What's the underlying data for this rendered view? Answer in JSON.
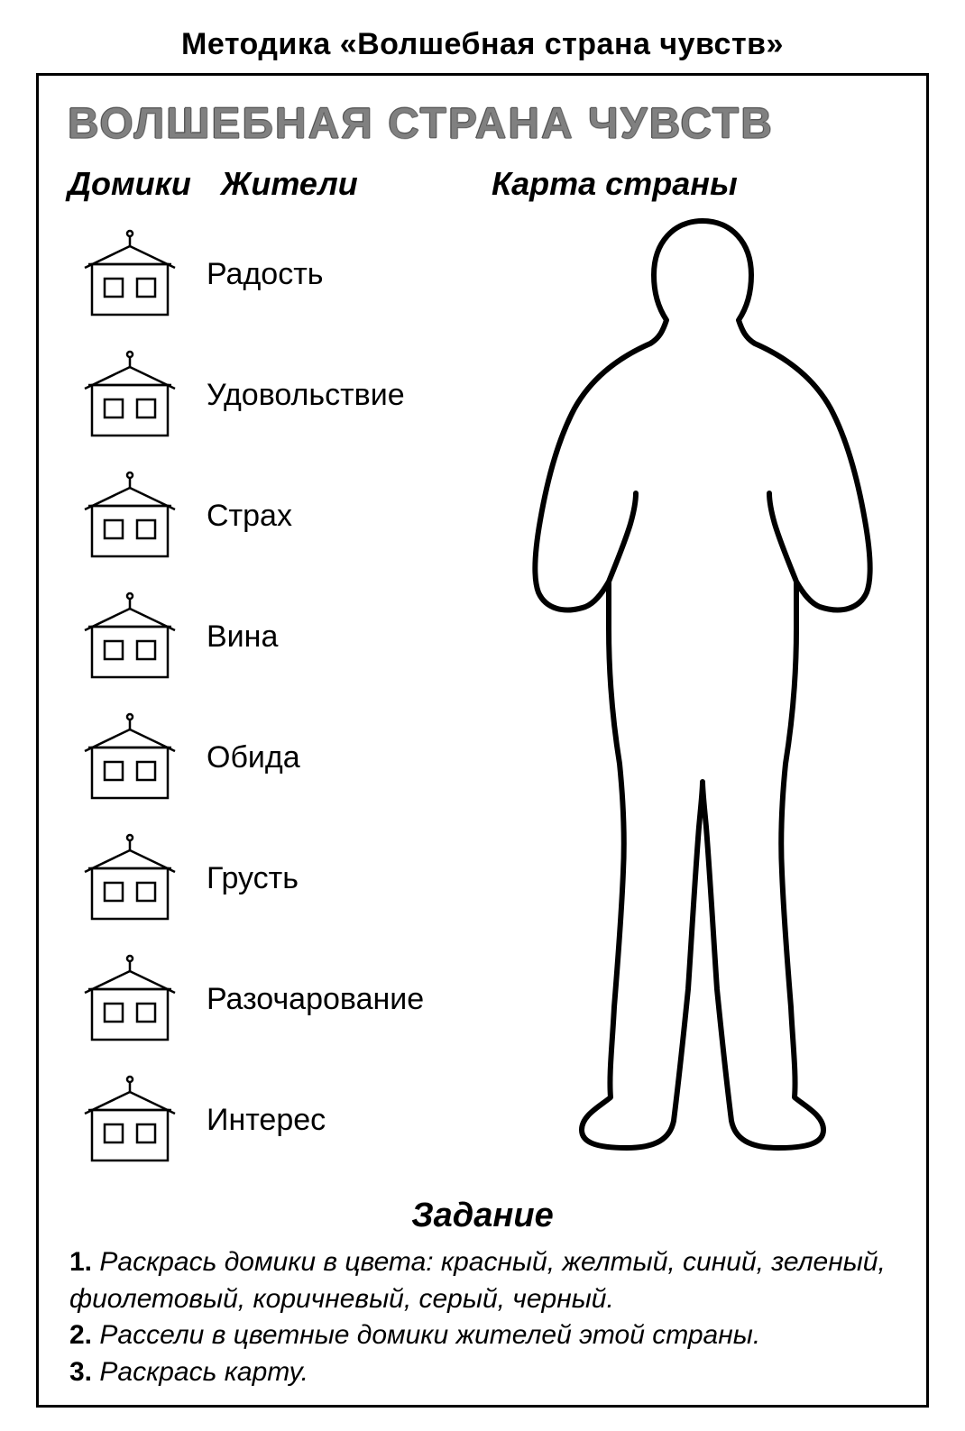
{
  "outer_title": "Методика «Волшебная страна чувств»",
  "main_title": "ВОЛШЕБНАЯ СТРАНА ЧУВСТВ",
  "columns": {
    "houses": "Домики",
    "people": "Жители",
    "map": "Карта страны"
  },
  "feelings": [
    "Радость",
    "Удовольствие",
    "Страх",
    "Вина",
    "Обида",
    "Грусть",
    "Разочарование",
    "Интерес"
  ],
  "task_title": "Задание",
  "tasks": [
    {
      "n": "1.",
      "text": "Раскрась домики в цвета: красный, желтый, синий, зеленый, фиолетовый, коричневый, серый, черный."
    },
    {
      "n": "2.",
      "text": "Рассели в цветные домики жителей этой страны."
    },
    {
      "n": "3.",
      "text": "Раскрась карту."
    }
  ],
  "style": {
    "page_bg": "#ffffff",
    "text_color": "#000000",
    "border_color": "#000000",
    "title_gray": "#808080",
    "house_stroke": "#000000",
    "house_stroke_width": 2,
    "body_stroke": "#000000",
    "body_stroke_width": 5,
    "outer_title_fontsize": 34,
    "main_title_fontsize": 48,
    "col_header_fontsize": 36,
    "feeling_fontsize": 34,
    "task_title_fontsize": 38,
    "task_text_fontsize": 30
  }
}
